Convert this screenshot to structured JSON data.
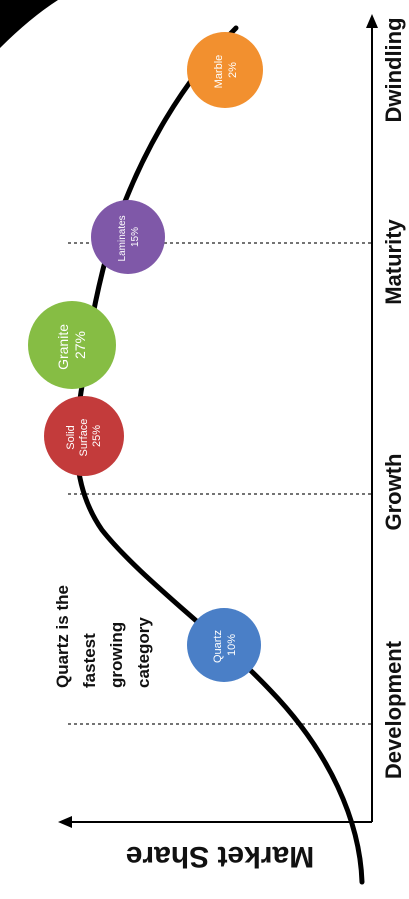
{
  "axis": {
    "y_label": "Market Share"
  },
  "stages": [
    {
      "label": "Development"
    },
    {
      "label": "Growth"
    },
    {
      "label": "Maturity"
    },
    {
      "label": "Dwindling"
    }
  ],
  "callout": {
    "lines": [
      "Quartz is the",
      "fastest",
      "growing",
      "category"
    ]
  },
  "bubbles": [
    {
      "lines": [
        "Quartz",
        "10%"
      ],
      "color": "#4a7fc7"
    },
    {
      "lines": [
        "Solid",
        "Surface",
        "25%"
      ],
      "color": "#c33b3b"
    },
    {
      "lines": [
        "Granite",
        "27%"
      ],
      "color": "#86bd44"
    },
    {
      "lines": [
        "Laminates",
        "15%"
      ],
      "color": "#7f58a8"
    },
    {
      "lines": [
        "Marble",
        "2%"
      ],
      "color": "#f2902f"
    }
  ],
  "colors": {
    "curve": "#000000",
    "axis": "#000000",
    "divider": "#222222",
    "corner": "#000000"
  }
}
